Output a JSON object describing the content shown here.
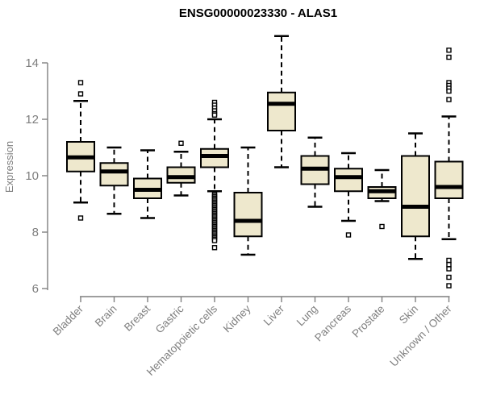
{
  "chart_data": {
    "type": "box",
    "title": "ENSG00000023330 - ALAS1",
    "ylabel": "Expression",
    "xlabel": "",
    "ylim": [
      6,
      14
    ],
    "y_ticks": [
      6,
      8,
      10,
      12,
      14
    ],
    "grid": false,
    "legend": false,
    "categories": [
      "Bladder",
      "Brain",
      "Breast",
      "Gastric",
      "Hematopoietic cells",
      "Kidney",
      "Liver",
      "Lung",
      "Pancreas",
      "Prostate",
      "Skin",
      "Unknown / Other"
    ],
    "series": [
      {
        "category": "Bladder",
        "whisker_low": 9.05,
        "q1": 10.15,
        "median": 10.65,
        "q3": 11.2,
        "whisker_high": 12.65,
        "outliers": [
          13.3,
          12.9,
          8.5
        ]
      },
      {
        "category": "Brain",
        "whisker_low": 8.65,
        "q1": 9.65,
        "median": 10.15,
        "q3": 10.45,
        "whisker_high": 11.0,
        "outliers": []
      },
      {
        "category": "Breast",
        "whisker_low": 8.5,
        "q1": 9.2,
        "median": 9.5,
        "q3": 9.9,
        "whisker_high": 10.9,
        "outliers": []
      },
      {
        "category": "Gastric",
        "whisker_low": 9.3,
        "q1": 9.75,
        "median": 9.95,
        "q3": 10.3,
        "whisker_high": 10.85,
        "outliers": [
          11.15
        ]
      },
      {
        "category": "Hematopoietic cells",
        "whisker_low": 9.45,
        "q1": 10.3,
        "median": 10.7,
        "q3": 10.95,
        "whisker_high": 12.0,
        "outliers": [
          12.6,
          12.5,
          12.4,
          12.3,
          12.2,
          12.15,
          9.35,
          9.3,
          9.25,
          9.2,
          9.15,
          9.1,
          9.05,
          9.0,
          8.95,
          8.9,
          8.85,
          8.8,
          8.75,
          8.7,
          8.65,
          8.6,
          8.55,
          8.5,
          8.45,
          8.4,
          8.35,
          8.3,
          8.25,
          8.2,
          8.15,
          8.1,
          8.05,
          8.0,
          7.95,
          7.9,
          7.85,
          7.8,
          7.75,
          7.7,
          7.45
        ]
      },
      {
        "category": "Kidney",
        "whisker_low": 7.2,
        "q1": 7.85,
        "median": 8.4,
        "q3": 9.4,
        "whisker_high": 11.0,
        "outliers": []
      },
      {
        "category": "Liver",
        "whisker_low": 10.3,
        "q1": 11.6,
        "median": 12.55,
        "q3": 12.95,
        "whisker_high": 14.95,
        "outliers": []
      },
      {
        "category": "Lung",
        "whisker_low": 8.9,
        "q1": 9.7,
        "median": 10.25,
        "q3": 10.7,
        "whisker_high": 11.35,
        "outliers": []
      },
      {
        "category": "Pancreas",
        "whisker_low": 8.4,
        "q1": 9.45,
        "median": 9.95,
        "q3": 10.25,
        "whisker_high": 10.8,
        "outliers": [
          7.9
        ]
      },
      {
        "category": "Prostate",
        "whisker_low": 9.1,
        "q1": 9.2,
        "median": 9.45,
        "q3": 9.6,
        "whisker_high": 10.2,
        "outliers": [
          8.2
        ]
      },
      {
        "category": "Skin",
        "whisker_low": 7.05,
        "q1": 7.85,
        "median": 8.9,
        "q3": 10.7,
        "whisker_high": 11.5,
        "outliers": []
      },
      {
        "category": "Unknown / Other",
        "whisker_low": 7.75,
        "q1": 9.2,
        "median": 9.6,
        "q3": 10.5,
        "whisker_high": 12.1,
        "outliers": [
          14.45,
          14.2,
          13.3,
          13.2,
          13.1,
          13.0,
          12.7,
          7.0,
          6.85,
          6.7,
          6.4,
          6.1
        ]
      }
    ],
    "colors": {
      "box_fill": "#EEE8CD",
      "box_stroke": "#000000",
      "median": "#000000",
      "whisker": "#000000",
      "outlier_fill": "#FFFFFF",
      "axis": "#7F7F7F",
      "tick_label": "#7F7F7F",
      "title": "#000000"
    }
  }
}
